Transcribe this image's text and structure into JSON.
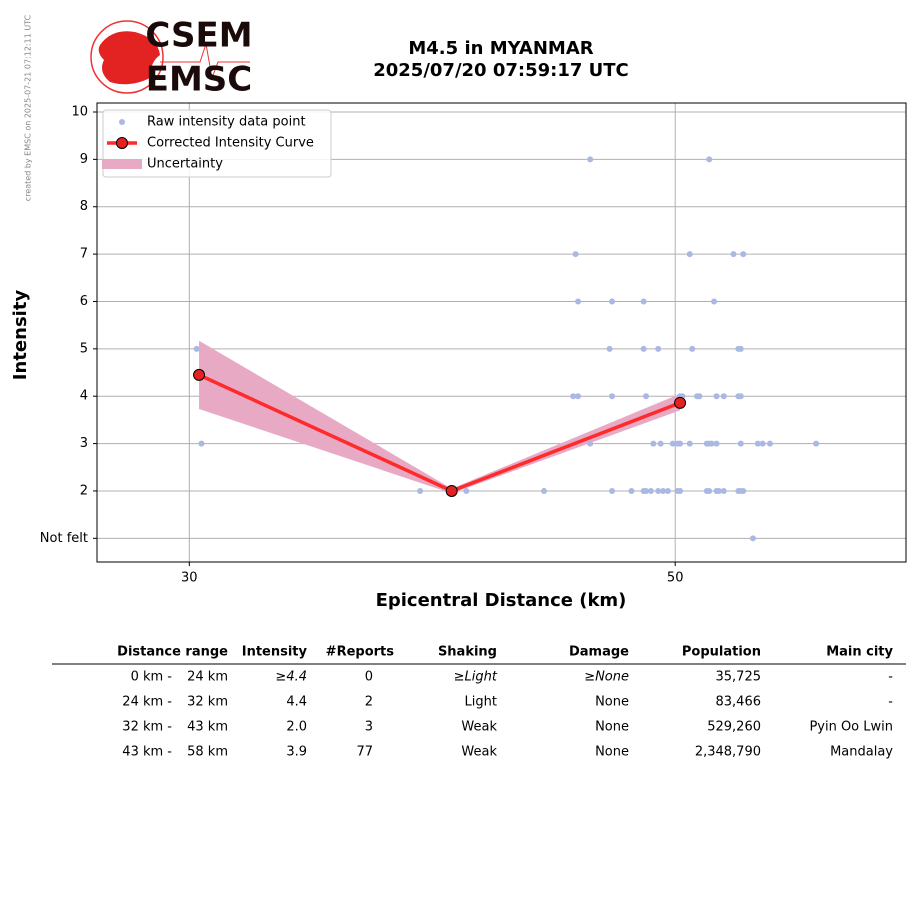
{
  "credit": "created by EMSC on 2025-07-21 07:12:11 UTC",
  "logo": {
    "top": "CSEM",
    "bottom": "EMSC"
  },
  "chart_data": {
    "type": "scatter",
    "title": [
      "M4.5 in MYANMAR",
      "2025/07/20 07:59:17 UTC"
    ],
    "x_label": "Epicentral Distance (km)",
    "y_label": "Intensity",
    "xlim": [
      26.2,
      59.5
    ],
    "ylim": [
      0.5,
      10.19
    ],
    "xticks": [
      30,
      50
    ],
    "yticks": [
      {
        "value": 1,
        "label": "Not felt"
      },
      2,
      3,
      4,
      5,
      6,
      7,
      8,
      9,
      10
    ],
    "grid": true,
    "legend": "upper left",
    "series": [
      {
        "name": "Raw intensity data point",
        "type": "scatter",
        "color": "#aab8e4",
        "x": [
          30.3,
          30.5,
          39.5,
          41.4,
          44.6,
          46.5,
          45.9,
          46.0,
          47.4,
          48.7,
          51.6,
          50.6,
          52.4,
          52.8,
          51.4,
          47.3,
          48.7,
          49.3,
          50.7,
          52.6,
          52.7,
          45.8,
          46.0,
          47.4,
          48.8,
          50.2,
          50.3,
          50.9,
          51.0,
          51.7,
          52.0,
          52.6,
          52.7,
          46.5,
          49.1,
          49.4,
          49.9,
          50.1,
          50.2,
          50.6,
          51.3,
          51.4,
          51.5,
          51.7,
          52.7,
          53.4,
          53.6,
          53.9,
          55.8,
          47.4,
          48.2,
          48.7,
          48.8,
          49.0,
          49.3,
          49.5,
          49.7,
          50.1,
          50.2,
          51.3,
          51.4,
          51.7,
          51.8,
          52.0,
          52.6,
          52.7,
          52.8,
          53.2
        ],
        "values": [
          5,
          3,
          2,
          2,
          2,
          9,
          7,
          6,
          6,
          6,
          6,
          7,
          7,
          7,
          9,
          5,
          5,
          5,
          5,
          5,
          5,
          4,
          4,
          4,
          4,
          4,
          4,
          4,
          4,
          4,
          4,
          4,
          4,
          3,
          3,
          3,
          3,
          3,
          3,
          3,
          3,
          3,
          3,
          3,
          3,
          3,
          3,
          3,
          3,
          2,
          2,
          2,
          2,
          2,
          2,
          2,
          2,
          2,
          2,
          2,
          2,
          2,
          2,
          2,
          2,
          2,
          2,
          1
        ]
      },
      {
        "name": "Corrected Intensity Curve",
        "type": "line",
        "color": "#ff2a2a",
        "marker_color": "#e32222",
        "x": [
          30.4,
          40.8,
          50.2
        ],
        "values": [
          4.45,
          2.0,
          3.86
        ]
      },
      {
        "name": "Uncertainty",
        "type": "area",
        "color": "#e8a9c5",
        "x": [
          30.4,
          40.8,
          50.2
        ],
        "lower": [
          3.73,
          1.95,
          3.7
        ],
        "upper": [
          5.17,
          2.05,
          4.05
        ]
      }
    ]
  },
  "table": {
    "header": [
      "Distance range",
      "Intensity",
      "#Reports",
      "Shaking",
      "Damage",
      "Population",
      "Main city"
    ],
    "rows": [
      [
        "0 km -",
        "24 km",
        "≥4.4",
        "0",
        "≥Light",
        "≥None",
        "35,725",
        "-"
      ],
      [
        "24 km -",
        "32 km",
        "4.4",
        "2",
        "Light",
        "None",
        "83,466",
        "-"
      ],
      [
        "32 km -",
        "43 km",
        "2.0",
        "3",
        "Weak",
        "None",
        "529,260",
        "Pyin Oo Lwin"
      ],
      [
        "43 km -",
        "58 km",
        "3.9",
        "77",
        "Weak",
        "None",
        "2,348,790",
        "Mandalay"
      ]
    ]
  }
}
